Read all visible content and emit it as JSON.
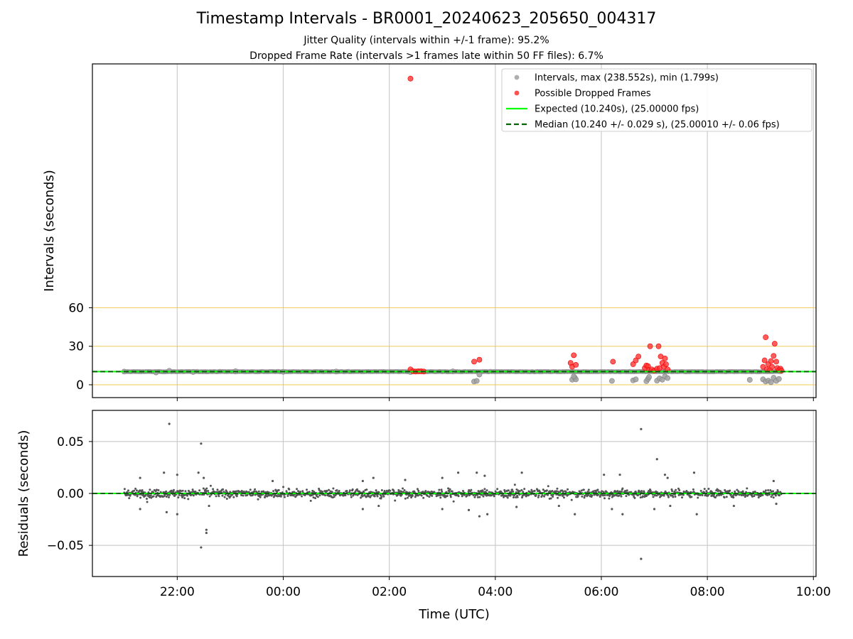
{
  "title": "Timestamp Intervals - BR0001_20240623_205650_004317",
  "subtitle_jitter": "Jitter Quality (intervals within +/-1 frame): 95.2%",
  "subtitle_dropped": "Dropped Frame Rate (intervals >1 frames late within 50 FF files): 6.7%",
  "colors": {
    "interval_points": "#a0a0a0",
    "dropped_points": "#ff3333",
    "expected_line": "#00ff00",
    "median_line": "#006400",
    "hlines": "#f0c850",
    "residual_points": "#555555",
    "grid": "#cccccc"
  },
  "chart_data": [
    {
      "type": "scatter",
      "panel": "top",
      "ylabel": "Intervals (seconds)",
      "yticks": [
        0,
        30,
        60
      ],
      "ylim": [
        -10,
        250
      ],
      "xlim_hours": [
        20.4,
        34.05
      ],
      "xticks": [
        {
          "hour": 22,
          "label": "22:00"
        },
        {
          "hour": 24,
          "label": "00:00"
        },
        {
          "hour": 26,
          "label": "02:00"
        },
        {
          "hour": 28,
          "label": "04:00"
        },
        {
          "hour": 30,
          "label": "06:00"
        },
        {
          "hour": 32,
          "label": "08:00"
        },
        {
          "hour": 34,
          "label": "10:00"
        }
      ],
      "grid_x": true,
      "horizontal_reference_lines": [
        0,
        30,
        60
      ],
      "legend_position": "top-right",
      "legend": [
        {
          "kind": "marker",
          "color": "#a0a0a0",
          "label": "Intervals, max (238.552s), min (1.799s)"
        },
        {
          "kind": "marker",
          "color": "#ff3333",
          "label": "Possible Dropped Frames"
        },
        {
          "kind": "line",
          "color": "#00ff00",
          "label": "Expected (10.240s), (25.00000 fps)"
        },
        {
          "kind": "dashed",
          "color": "#006400",
          "label": "Median (10.240 +/- 0.029 s), (25.00010 +/- 0.06 fps)"
        }
      ],
      "expected_interval": 10.24,
      "median_interval": 10.24,
      "interval_band": {
        "x_start": 21.0,
        "x_end": 33.4,
        "value": 10.24
      },
      "series": [
        {
          "name": "Intervals, max (238.552s), min (1.799s)",
          "points": [
            [
              21.0,
              10.24
            ],
            [
              21.6,
              9.6
            ],
            [
              21.85,
              10.9
            ],
            [
              22.3,
              10.0
            ],
            [
              23.1,
              10.5
            ],
            [
              24.0,
              10.1
            ],
            [
              25.0,
              10.3
            ],
            [
              26.4,
              9.9
            ],
            [
              27.2,
              10.4
            ],
            [
              27.6,
              2.5
            ],
            [
              27.65,
              3.0
            ],
            [
              27.7,
              8.0
            ],
            [
              29.45,
              4.0
            ],
            [
              29.5,
              5.5
            ],
            [
              29.52,
              4.2
            ],
            [
              29.48,
              6.5
            ],
            [
              30.2,
              3.0
            ],
            [
              30.6,
              3.4
            ],
            [
              30.65,
              4.2
            ],
            [
              30.85,
              2.8
            ],
            [
              30.88,
              4.5
            ],
            [
              30.9,
              6.0
            ],
            [
              31.05,
              3.2
            ],
            [
              31.1,
              5.0
            ],
            [
              31.15,
              4.0
            ],
            [
              31.2,
              6.5
            ],
            [
              31.25,
              5.2
            ],
            [
              32.8,
              3.8
            ],
            [
              33.05,
              4.2
            ],
            [
              33.1,
              2.5
            ],
            [
              33.15,
              3.2
            ],
            [
              33.2,
              2.0
            ],
            [
              33.25,
              5.5
            ],
            [
              33.3,
              3.0
            ],
            [
              33.35,
              4.5
            ]
          ]
        },
        {
          "name": "Possible Dropped Frames",
          "points": [
            [
              26.4,
              238.55
            ],
            [
              26.4,
              12.0
            ],
            [
              26.45,
              10.5
            ],
            [
              26.5,
              10.3
            ],
            [
              26.55,
              10.5
            ],
            [
              26.6,
              10.5
            ],
            [
              26.65,
              10.3
            ],
            [
              27.6,
              18.0
            ],
            [
              27.7,
              19.5
            ],
            [
              29.42,
              17.0
            ],
            [
              29.45,
              14.0
            ],
            [
              29.48,
              23.0
            ],
            [
              29.52,
              15.5
            ],
            [
              30.22,
              18.0
            ],
            [
              30.6,
              16.0
            ],
            [
              30.65,
              19.0
            ],
            [
              30.7,
              22.0
            ],
            [
              30.82,
              13.0
            ],
            [
              30.85,
              15.0
            ],
            [
              30.88,
              14.5
            ],
            [
              30.9,
              11.5
            ],
            [
              30.92,
              30.0
            ],
            [
              30.95,
              12.0
            ],
            [
              31.0,
              11.0
            ],
            [
              31.05,
              12.5
            ],
            [
              31.08,
              30.0
            ],
            [
              31.1,
              13.0
            ],
            [
              31.12,
              22.0
            ],
            [
              31.15,
              17.0
            ],
            [
              31.18,
              14.0
            ],
            [
              31.2,
              20.5
            ],
            [
              31.22,
              16.0
            ],
            [
              31.25,
              12.0
            ],
            [
              33.05,
              14.0
            ],
            [
              33.08,
              19.0
            ],
            [
              33.1,
              37.0
            ],
            [
              33.12,
              12.0
            ],
            [
              33.15,
              16.0
            ],
            [
              33.18,
              11.5
            ],
            [
              33.2,
              18.5
            ],
            [
              33.22,
              14.0
            ],
            [
              33.25,
              22.5
            ],
            [
              33.27,
              32.0
            ],
            [
              33.3,
              18.0
            ],
            [
              33.32,
              13.0
            ],
            [
              33.35,
              11.5
            ],
            [
              33.38,
              12.5
            ],
            [
              33.4,
              11.0
            ]
          ]
        }
      ]
    },
    {
      "type": "scatter",
      "panel": "bottom",
      "xlabel": "Time (UTC)",
      "ylabel": "Residuals (seconds)",
      "yticks": [
        {
          "value": 0.05,
          "label": "0.05"
        },
        {
          "value": 0.0,
          "label": "0.00"
        },
        {
          "value": -0.05,
          "label": "−0.05"
        }
      ],
      "ylim": [
        -0.08,
        0.08
      ],
      "xlim_hours": [
        20.4,
        34.05
      ],
      "grid_x": true,
      "grid_y": true,
      "median_residual": 0.0,
      "series": [
        {
          "name": "Residuals",
          "x_start": 21.0,
          "x_end": 33.4,
          "typical_spread": 0.004,
          "points": [
            [
              21.85,
              0.067
            ],
            [
              22.45,
              0.048
            ],
            [
              22.45,
              -0.052
            ],
            [
              22.55,
              -0.038
            ],
            [
              22.55,
              -0.035
            ],
            [
              21.3,
              0.015
            ],
            [
              21.3,
              -0.015
            ],
            [
              21.75,
              0.02
            ],
            [
              21.8,
              -0.018
            ],
            [
              22.0,
              0.018
            ],
            [
              22.0,
              -0.02
            ],
            [
              22.4,
              0.02
            ],
            [
              22.5,
              0.015
            ],
            [
              22.6,
              -0.012
            ],
            [
              23.8,
              0.012
            ],
            [
              25.5,
              0.012
            ],
            [
              25.5,
              -0.015
            ],
            [
              25.7,
              0.015
            ],
            [
              25.8,
              -0.012
            ],
            [
              26.3,
              0.013
            ],
            [
              27.0,
              0.015
            ],
            [
              27.0,
              -0.015
            ],
            [
              27.3,
              0.02
            ],
            [
              27.5,
              -0.016
            ],
            [
              27.65,
              0.02
            ],
            [
              27.7,
              -0.022
            ],
            [
              27.8,
              0.017
            ],
            [
              27.85,
              -0.02
            ],
            [
              28.5,
              0.02
            ],
            [
              28.4,
              -0.013
            ],
            [
              29.2,
              -0.012
            ],
            [
              29.5,
              -0.02
            ],
            [
              30.05,
              0.018
            ],
            [
              30.2,
              -0.015
            ],
            [
              30.35,
              0.018
            ],
            [
              30.4,
              -0.02
            ],
            [
              30.75,
              0.062
            ],
            [
              30.75,
              -0.063
            ],
            [
              31.05,
              0.033
            ],
            [
              31.2,
              0.018
            ],
            [
              31.25,
              0.015
            ],
            [
              31.0,
              -0.015
            ],
            [
              31.3,
              -0.012
            ],
            [
              31.75,
              0.02
            ],
            [
              31.8,
              -0.02
            ],
            [
              32.5,
              -0.012
            ],
            [
              33.25,
              0.012
            ],
            [
              33.3,
              -0.01
            ]
          ]
        }
      ]
    }
  ]
}
